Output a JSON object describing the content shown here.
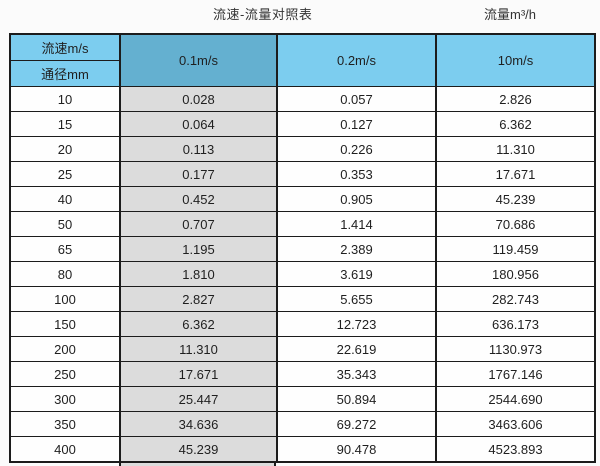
{
  "titles": {
    "main": "流速-流量对照表",
    "unit": "流量m³/h"
  },
  "table": {
    "header": {
      "velocity_label": "流速m/s",
      "diameter_label": "通径mm",
      "columns": [
        "0.1m/s",
        "0.2m/s",
        "10m/s"
      ]
    },
    "rows": [
      [
        "10",
        "0.028",
        "0.057",
        "2.826"
      ],
      [
        "15",
        "0.064",
        "0.127",
        "6.362"
      ],
      [
        "20",
        "0.113",
        "0.226",
        "11.310"
      ],
      [
        "25",
        "0.177",
        "0.353",
        "17.671"
      ],
      [
        "40",
        "0.452",
        "0.905",
        "45.239"
      ],
      [
        "50",
        "0.707",
        "1.414",
        "70.686"
      ],
      [
        "65",
        "1.195",
        "2.389",
        "119.459"
      ],
      [
        "80",
        "1.810",
        "3.619",
        "180.956"
      ],
      [
        "100",
        "2.827",
        "5.655",
        "282.743"
      ],
      [
        "150",
        "6.362",
        "12.723",
        "636.173"
      ],
      [
        "200",
        "11.310",
        "22.619",
        "1130.973"
      ],
      [
        "250",
        "17.671",
        "35.343",
        "1767.146"
      ],
      [
        "300",
        "25.447",
        "50.894",
        "2544.690"
      ],
      [
        "350",
        "34.636",
        "69.272",
        "3463.606"
      ],
      [
        "400",
        "45.239",
        "90.478",
        "4523.893"
      ]
    ]
  },
  "colors": {
    "page_bg": "#fbfbfb",
    "text": "#1f1f1f",
    "header_blue": "#7ccdef",
    "header_blue_dark": "#64b0d0",
    "highlight_gray": "#dcdcdc",
    "cell_white": "#fefefe",
    "border": "#1c1c1c"
  },
  "chart_data": {
    "type": "table",
    "title": "流速-流量对照表",
    "unit_label": "流量m³/h",
    "columns": [
      "通径mm",
      "0.1m/s",
      "0.2m/s",
      "10m/s"
    ],
    "diameters_mm": [
      10,
      15,
      20,
      25,
      40,
      50,
      65,
      80,
      100,
      150,
      200,
      250,
      300,
      350,
      400
    ],
    "series": [
      {
        "name": "0.1m/s",
        "values": [
          0.028,
          0.064,
          0.113,
          0.177,
          0.452,
          0.707,
          1.195,
          1.81,
          2.827,
          6.362,
          11.31,
          17.671,
          25.447,
          34.636,
          45.239
        ]
      },
      {
        "name": "0.2m/s",
        "values": [
          0.057,
          0.127,
          0.226,
          0.353,
          0.905,
          1.414,
          2.389,
          3.619,
          5.655,
          12.723,
          22.619,
          35.343,
          50.894,
          69.272,
          90.478
        ]
      },
      {
        "name": "10m/s",
        "values": [
          2.826,
          6.362,
          11.31,
          17.671,
          45.239,
          70.686,
          119.459,
          180.956,
          282.743,
          636.173,
          1130.973,
          1767.146,
          2544.69,
          3463.606,
          4523.893
        ]
      }
    ],
    "layout": {
      "highlighted_column": "0.1m/s",
      "grid": true
    }
  }
}
